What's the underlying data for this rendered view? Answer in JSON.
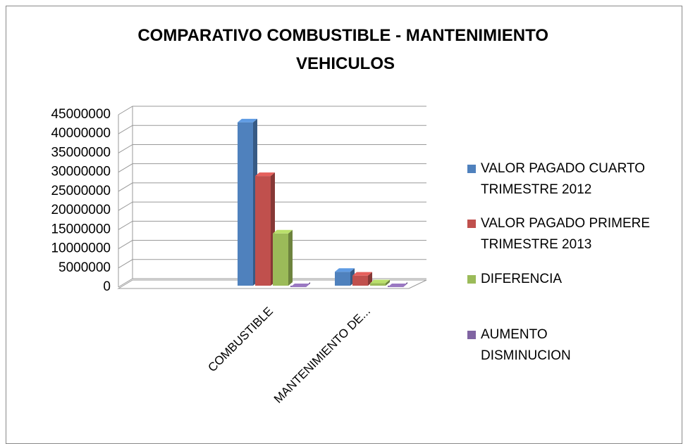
{
  "chart_data": {
    "type": "bar3d",
    "title": "COMPARATIVO COMBUSTIBLE - MANTENIMIENTO VEHICULOS",
    "categories": [
      "COMBUSTIBLE",
      "MANTENIMIENTO DE..."
    ],
    "series": [
      {
        "name": "VALOR PAGADO CUARTO TRIMESTRE 2012",
        "color": "#4f81bd",
        "values": [
          43000000,
          4000000
        ]
      },
      {
        "name": "VALOR PAGADO PRIMERE TRIMESTRE 2013",
        "color": "#c0504d",
        "values": [
          29000000,
          3000000
        ]
      },
      {
        "name": "DIFERENCIA",
        "color": "#9bbb59",
        "values": [
          14000000,
          1000000
        ]
      },
      {
        "name": "AUMENTO DISMINUCION",
        "color": "#8064a2",
        "values": [
          0,
          0
        ]
      }
    ],
    "ylim": [
      0,
      45000000
    ],
    "yticks": [
      0,
      5000000,
      10000000,
      15000000,
      20000000,
      25000000,
      30000000,
      35000000,
      40000000,
      45000000
    ],
    "grid": true,
    "legend": "right"
  }
}
